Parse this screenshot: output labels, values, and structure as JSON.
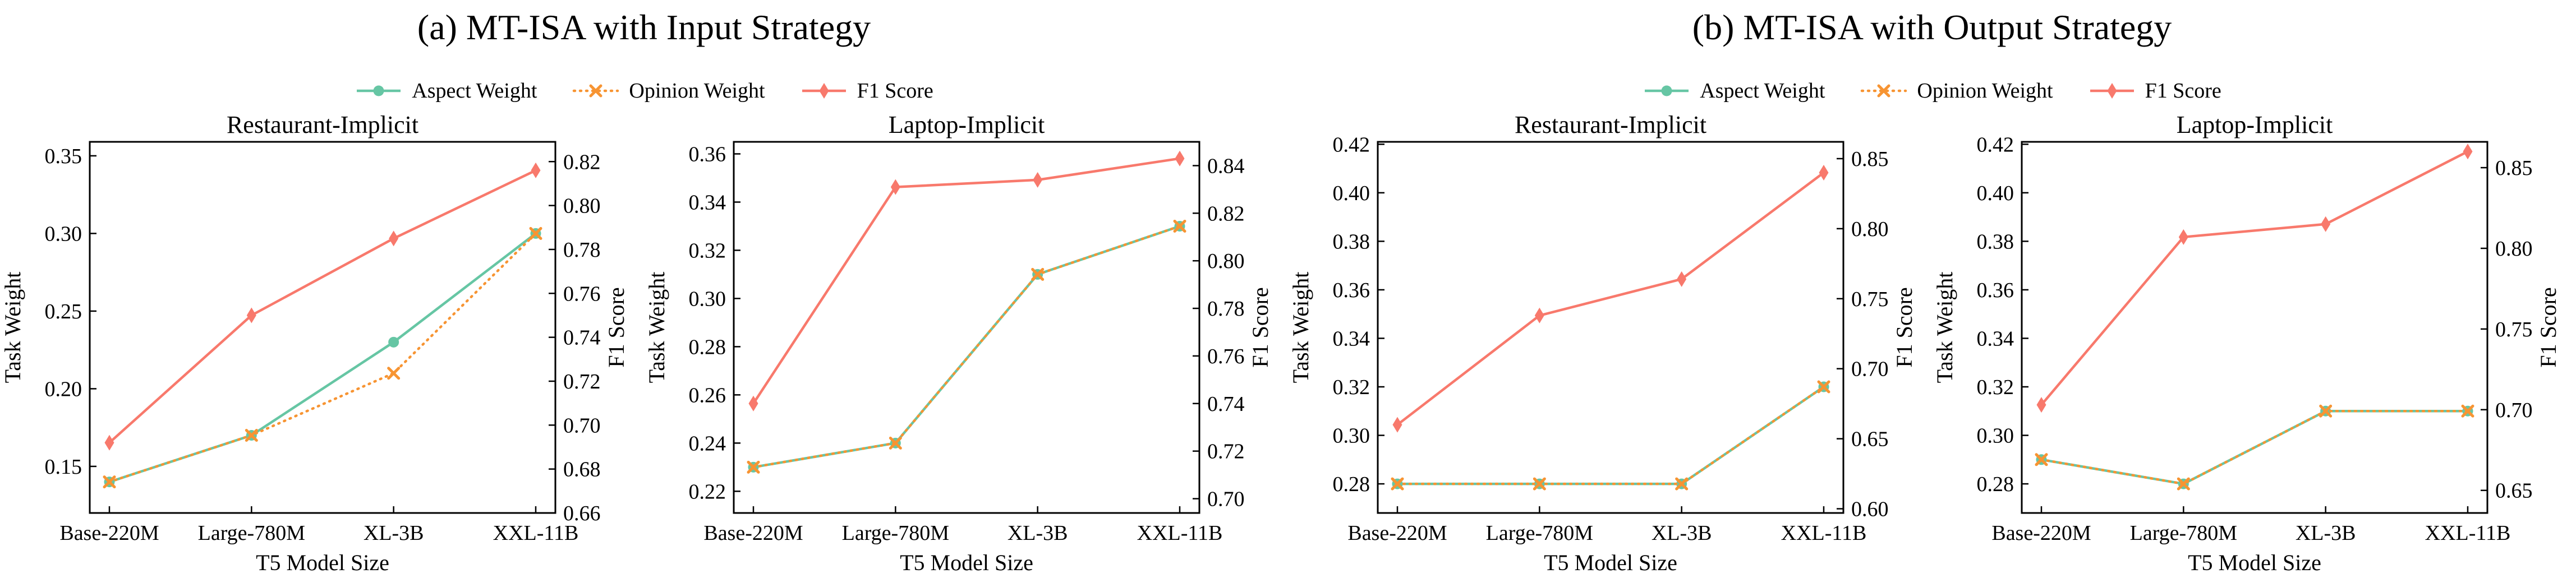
{
  "page": {
    "background": "#ffffff"
  },
  "colors": {
    "aspect": "#66C6A4",
    "opinion": "#F79432",
    "f1": "#F8796C",
    "axis": "#000000"
  },
  "legend": {
    "items": [
      {
        "label": "Aspect Weight",
        "key": "aspect",
        "marker": "circle",
        "line": "solid"
      },
      {
        "label": "Opinion Weight",
        "key": "opinion",
        "marker": "x",
        "line": "dotted"
      },
      {
        "label": "F1 Score",
        "key": "f1",
        "marker": "diamond",
        "line": "solid"
      }
    ]
  },
  "panels": [
    {
      "id": "a",
      "title": "(a) MT-ISA with Input Strategy"
    },
    {
      "id": "b",
      "title": "(b) MT-ISA with Output Strategy"
    }
  ],
  "chart_data": [
    {
      "type": "line",
      "panel": "a",
      "title": "Restaurant-Implicit",
      "xlabel": "T5 Model Size",
      "ylabel_left": "Task Weight",
      "ylabel_right": "F1 Score",
      "grid": false,
      "categories": [
        "Base-220M",
        "Large-780M",
        "XL-3B",
        "XXL-11B"
      ],
      "left_axis": {
        "ticks": [
          0.15,
          0.2,
          0.25,
          0.3,
          0.35
        ],
        "lim": [
          0.12,
          0.359
        ]
      },
      "right_axis": {
        "ticks": [
          0.66,
          0.68,
          0.7,
          0.72,
          0.74,
          0.76,
          0.78,
          0.8,
          0.82
        ],
        "lim": [
          0.66,
          0.829
        ]
      },
      "series": [
        {
          "name": "Aspect Weight",
          "key": "aspect",
          "axis": "left",
          "values": [
            0.14,
            0.17,
            0.23,
            0.3
          ]
        },
        {
          "name": "Opinion Weight",
          "key": "opinion",
          "axis": "left",
          "values": [
            0.14,
            0.17,
            0.21,
            0.3
          ]
        },
        {
          "name": "F1 Score",
          "key": "f1",
          "axis": "right",
          "values": [
            0.692,
            0.75,
            0.785,
            0.816
          ]
        }
      ]
    },
    {
      "type": "line",
      "panel": "a",
      "title": "Laptop-Implicit",
      "xlabel": "T5 Model Size",
      "ylabel_left": "Task Weight",
      "ylabel_right": "F1 Score",
      "grid": false,
      "categories": [
        "Base-220M",
        "Large-780M",
        "XL-3B",
        "XXL-11B"
      ],
      "left_axis": {
        "ticks": [
          0.22,
          0.24,
          0.26,
          0.28,
          0.3,
          0.32,
          0.34,
          0.36
        ],
        "lim": [
          0.211,
          0.365
        ]
      },
      "right_axis": {
        "ticks": [
          0.7,
          0.72,
          0.74,
          0.76,
          0.78,
          0.8,
          0.82,
          0.84
        ],
        "lim": [
          0.694,
          0.85
        ]
      },
      "series": [
        {
          "name": "Aspect Weight",
          "key": "aspect",
          "axis": "left",
          "values": [
            0.23,
            0.24,
            0.31,
            0.33
          ]
        },
        {
          "name": "Opinion Weight",
          "key": "opinion",
          "axis": "left",
          "values": [
            0.23,
            0.24,
            0.31,
            0.33
          ]
        },
        {
          "name": "F1 Score",
          "key": "f1",
          "axis": "right",
          "values": [
            0.74,
            0.831,
            0.834,
            0.843
          ]
        }
      ]
    },
    {
      "type": "line",
      "panel": "b",
      "title": "Restaurant-Implicit",
      "xlabel": "T5 Model Size",
      "ylabel_left": "Task Weight",
      "ylabel_right": "F1 Score",
      "grid": false,
      "categories": [
        "Base-220M",
        "Large-780M",
        "XL-3B",
        "XXL-11B"
      ],
      "left_axis": {
        "ticks": [
          0.28,
          0.3,
          0.32,
          0.34,
          0.36,
          0.38,
          0.4,
          0.42
        ],
        "lim": [
          0.268,
          0.421
        ]
      },
      "right_axis": {
        "ticks": [
          0.6,
          0.65,
          0.7,
          0.75,
          0.8,
          0.85
        ],
        "lim": [
          0.597,
          0.862
        ]
      },
      "series": [
        {
          "name": "Aspect Weight",
          "key": "aspect",
          "axis": "left",
          "values": [
            0.28,
            0.28,
            0.28,
            0.32
          ]
        },
        {
          "name": "Opinion Weight",
          "key": "opinion",
          "axis": "left",
          "values": [
            0.28,
            0.28,
            0.28,
            0.32
          ]
        },
        {
          "name": "F1 Score",
          "key": "f1",
          "axis": "right",
          "values": [
            0.66,
            0.738,
            0.764,
            0.84
          ]
        }
      ]
    },
    {
      "type": "line",
      "panel": "b",
      "title": "Laptop-Implicit",
      "xlabel": "T5 Model Size",
      "ylabel_left": "Task Weight",
      "ylabel_right": "F1 Score",
      "grid": false,
      "categories": [
        "Base-220M",
        "Large-780M",
        "XL-3B",
        "XXL-11B"
      ],
      "left_axis": {
        "ticks": [
          0.28,
          0.3,
          0.32,
          0.34,
          0.36,
          0.38,
          0.4,
          0.42
        ],
        "lim": [
          0.268,
          0.421
        ]
      },
      "right_axis": {
        "ticks": [
          0.65,
          0.7,
          0.75,
          0.8,
          0.85
        ],
        "lim": [
          0.636,
          0.866
        ]
      },
      "series": [
        {
          "name": "Aspect Weight",
          "key": "aspect",
          "axis": "left",
          "values": [
            0.29,
            0.28,
            0.31,
            0.31
          ]
        },
        {
          "name": "Opinion Weight",
          "key": "opinion",
          "axis": "left",
          "values": [
            0.29,
            0.28,
            0.31,
            0.31
          ]
        },
        {
          "name": "F1 Score",
          "key": "f1",
          "axis": "right",
          "values": [
            0.703,
            0.807,
            0.815,
            0.86
          ]
        }
      ]
    }
  ]
}
